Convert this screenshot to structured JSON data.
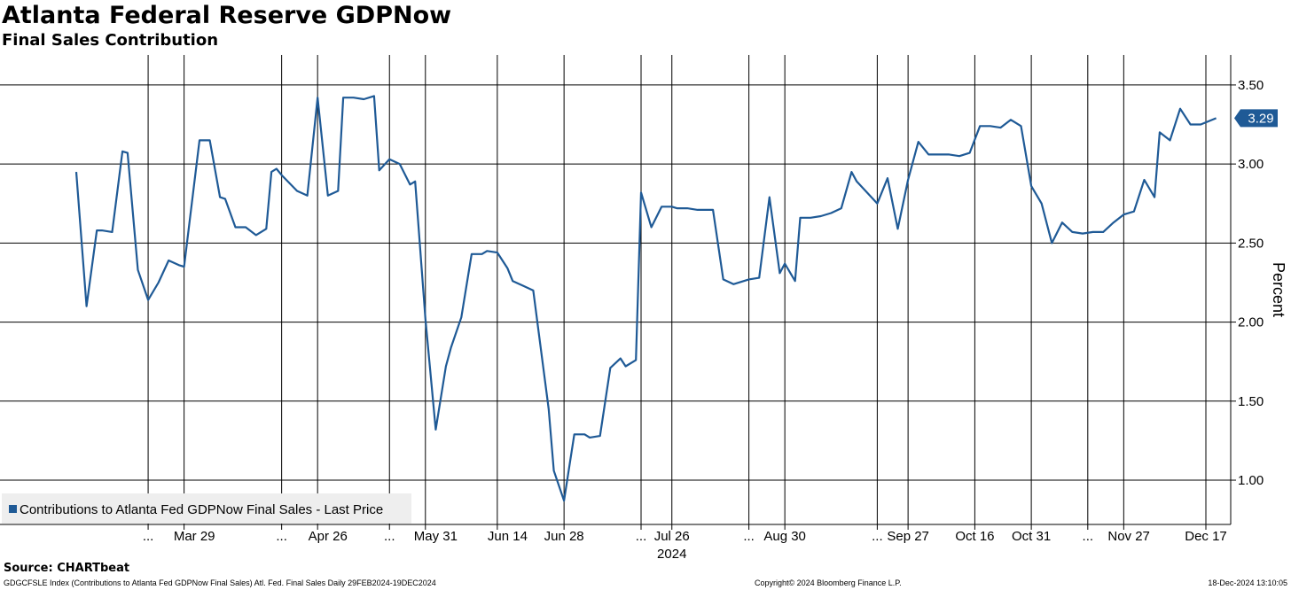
{
  "header": {
    "title": "Atlanta Federal Reserve GDPNow",
    "subtitle": "Final Sales Contribution"
  },
  "footer": {
    "source": "Source: CHARTbeat",
    "ticker_info": "GDGCFSLE Index (Contributions to Atlanta Fed GDPNow Final Sales) Atl. Fed. Final Sales  Daily 29FEB2024-19DEC2024",
    "copyright": "Copyright© 2024 Bloomberg Finance L.P.",
    "timestamp": "18-Dec-2024 13:10:05"
  },
  "chart_data": {
    "type": "line",
    "ylabel": "Percent",
    "ylim": [
      0.72,
      3.69
    ],
    "yticks": [
      1.0,
      1.5,
      2.0,
      2.5,
      3.0,
      3.5
    ],
    "ytick_labels": [
      "1.00",
      "1.50",
      "2.00",
      "2.50",
      "3.00",
      "3.50"
    ],
    "xlim": [
      0,
      220
    ],
    "xticks": [
      {
        "x": 23,
        "label": "Mar 29"
      },
      {
        "x": 49,
        "label": "Apr 26"
      },
      {
        "x": 70,
        "label": "May 31"
      },
      {
        "x": 84,
        "label": "Jun 14"
      },
      {
        "x": 95,
        "label": "Jun 28"
      },
      {
        "x": 116,
        "label": "Jul 26"
      },
      {
        "x": 138,
        "label": "Aug 30"
      },
      {
        "x": 162,
        "label": "Sep 27"
      },
      {
        "x": 175,
        "label": "Oct 16"
      },
      {
        "x": 186,
        "label": "Oct 31"
      },
      {
        "x": 205,
        "label": "Nov 27"
      },
      {
        "x": 220,
        "label": "Dec 17"
      }
    ],
    "ellipsis_ticks": [
      14,
      40,
      61,
      110,
      131,
      156,
      197
    ],
    "ellipsis_label": "...",
    "year_label": "2024",
    "year_label_x": 116,
    "vertical_gridlines": [
      14,
      21,
      40,
      47,
      61,
      68,
      82,
      95,
      110,
      116,
      131,
      138,
      156,
      162,
      175,
      186,
      197,
      204,
      220
    ],
    "grid": true,
    "legend": {
      "position": "bottom-left",
      "entries": [
        "Contributions to Atlanta Fed GDPNow Final Sales - Last Price"
      ]
    },
    "last_value_label": "3.29",
    "series": [
      {
        "name": "Contributions to Atlanta Fed GDPNow Final Sales - Last Price",
        "color": "#1f5a96",
        "x": [
          0,
          2,
          4,
          5,
          7,
          9,
          10,
          12,
          14,
          16,
          18,
          20,
          21,
          24,
          26,
          28,
          29,
          31,
          33,
          35,
          37,
          38,
          39,
          40,
          43,
          45,
          47,
          49,
          51,
          52,
          54,
          56,
          58,
          59,
          61,
          63,
          65,
          66,
          68,
          70,
          72,
          73,
          75,
          77,
          79,
          80,
          82,
          84,
          85,
          87,
          89,
          92,
          93,
          95,
          97,
          99,
          100,
          102,
          104,
          106,
          107,
          109,
          110,
          112,
          114,
          116,
          117,
          119,
          121,
          123,
          124,
          126,
          128,
          131,
          133,
          135,
          137,
          138,
          140,
          141,
          143,
          145,
          147,
          149,
          151,
          152,
          154,
          156,
          158,
          160,
          162,
          164,
          166,
          168,
          170,
          172,
          174,
          176,
          178,
          180,
          182,
          184,
          186,
          188,
          190,
          192,
          194,
          196,
          198,
          200,
          202,
          204,
          206,
          208,
          210,
          211,
          213,
          215,
          217,
          219,
          222
        ],
        "values": [
          2.95,
          2.1,
          2.58,
          2.58,
          2.57,
          3.08,
          3.07,
          2.33,
          2.14,
          2.25,
          2.39,
          2.36,
          2.35,
          3.15,
          3.15,
          2.79,
          2.78,
          2.6,
          2.6,
          2.55,
          2.59,
          2.95,
          2.97,
          2.93,
          2.83,
          2.8,
          3.42,
          2.8,
          2.83,
          3.42,
          3.42,
          3.41,
          3.43,
          2.96,
          3.03,
          3.0,
          2.87,
          2.89,
          2.02,
          1.32,
          1.72,
          1.84,
          2.03,
          2.43,
          2.43,
          2.45,
          2.44,
          2.34,
          2.26,
          2.23,
          2.2,
          1.45,
          1.06,
          0.87,
          1.29,
          1.29,
          1.27,
          1.28,
          1.71,
          1.77,
          1.72,
          1.76,
          2.82,
          2.6,
          2.73,
          2.73,
          2.72,
          2.72,
          2.71,
          2.71,
          2.71,
          2.27,
          2.24,
          2.27,
          2.28,
          2.79,
          2.31,
          2.37,
          2.26,
          2.66,
          2.66,
          2.67,
          2.69,
          2.72,
          2.95,
          2.89,
          2.82,
          2.75,
          2.91,
          2.59,
          2.9,
          3.14,
          3.06,
          3.06,
          3.06,
          3.05,
          3.07,
          3.24,
          3.24,
          3.23,
          3.28,
          3.24,
          2.86,
          2.75,
          2.5,
          2.63,
          2.57,
          2.56,
          2.57,
          2.57,
          2.63,
          2.68,
          2.7,
          2.9,
          2.79,
          3.2,
          3.15,
          3.35,
          3.25,
          3.25,
          3.29
        ]
      }
    ]
  }
}
